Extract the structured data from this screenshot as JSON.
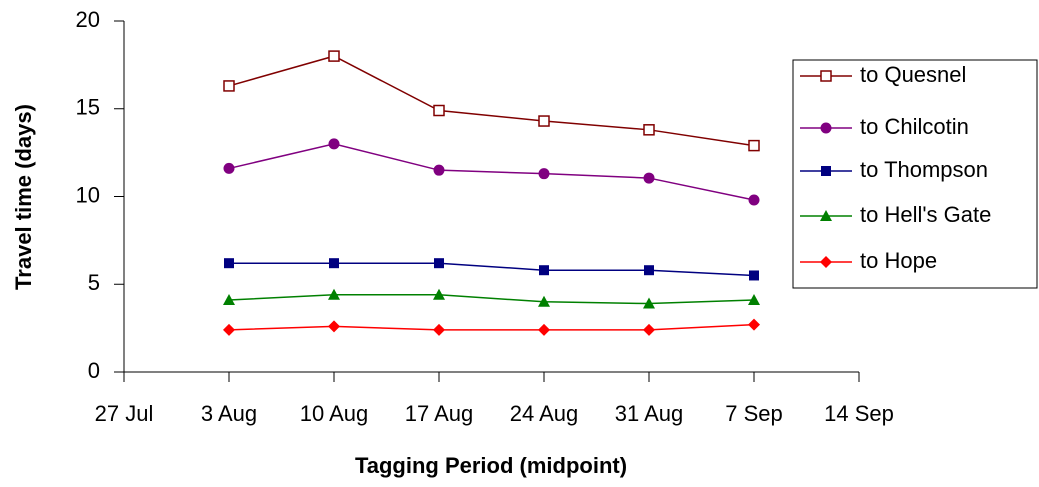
{
  "chart_data": {
    "type": "line",
    "x_label": "Tagging Period (midpoint)",
    "y_label": "Travel time (days)",
    "categories": [
      "27 Jul",
      "3 Aug",
      "10 Aug",
      "17 Aug",
      "24 Aug",
      "31 Aug",
      "7 Sep",
      "14 Sep"
    ],
    "ylim": [
      0,
      20
    ],
    "yticks": [
      0,
      5,
      10,
      15,
      20
    ],
    "legend": "right",
    "series": [
      {
        "name": "to Quesnel",
        "color": "#800000",
        "marker": "square-open",
        "values": [
          null,
          16.3,
          18.0,
          14.9,
          14.3,
          13.8,
          12.9,
          null
        ]
      },
      {
        "name": "to Chilcotin",
        "color": "#800080",
        "marker": "circle",
        "values": [
          null,
          11.6,
          13.0,
          11.5,
          11.3,
          11.05,
          9.8,
          null
        ]
      },
      {
        "name": "to Thompson",
        "color": "#000080",
        "marker": "square",
        "values": [
          null,
          6.2,
          6.2,
          6.2,
          5.8,
          5.8,
          5.5,
          null
        ]
      },
      {
        "name": "to Hell's Gate",
        "color": "#008000",
        "marker": "triangle",
        "values": [
          null,
          4.1,
          4.4,
          4.4,
          4.0,
          3.9,
          4.1,
          null
        ]
      },
      {
        "name": "to Hope",
        "color": "#ff0000",
        "marker": "diamond",
        "values": [
          null,
          2.4,
          2.6,
          2.4,
          2.4,
          2.4,
          2.7,
          null
        ]
      }
    ]
  }
}
